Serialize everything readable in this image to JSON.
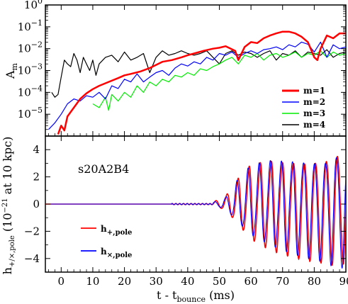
{
  "chart_data": [
    {
      "type": "line",
      "ylabel": "A",
      "ylabel_sub": "m",
      "yscale": "log",
      "ylim": [
        1e-06,
        1
      ],
      "xlim": [
        -5,
        90
      ],
      "y_ticks": [
        {
          "value": 1,
          "base": "10",
          "exp": "0"
        },
        {
          "value": 0.1,
          "base": "10",
          "exp": "−1"
        },
        {
          "value": 0.01,
          "base": "10",
          "exp": "−2"
        },
        {
          "value": 0.001,
          "base": "10",
          "exp": "−3"
        },
        {
          "value": 0.0001,
          "base": "10",
          "exp": "−4"
        },
        {
          "value": 1e-05,
          "base": "10",
          "exp": "−5"
        }
      ],
      "legend_position": "lower-right",
      "series": [
        {
          "name": "m=1",
          "color": "#ff0000",
          "x": [
            -1,
            0,
            1,
            2,
            4,
            6,
            8,
            10,
            12,
            15,
            18,
            20,
            22,
            25,
            28,
            30,
            32,
            35,
            38,
            40,
            42,
            45,
            48,
            50,
            52,
            55,
            56,
            58,
            60,
            62,
            64,
            66,
            68,
            70,
            72,
            74,
            76,
            78,
            80,
            81,
            82,
            84,
            86,
            88,
            90
          ],
          "y": [
            1.2e-06,
            3e-06,
            1.8e-06,
            8e-06,
            2e-05,
            5e-05,
            9e-05,
            0.00014,
            0.0002,
            0.0003,
            0.00045,
            0.0006,
            0.0007,
            0.0009,
            0.0013,
            0.0018,
            0.0025,
            0.003,
            0.004,
            0.005,
            0.006,
            0.008,
            0.01,
            0.011,
            0.013,
            0.008,
            0.003,
            0.012,
            0.02,
            0.018,
            0.03,
            0.04,
            0.05,
            0.06,
            0.06,
            0.05,
            0.035,
            0.02,
            0.004,
            0.003,
            0.01,
            0.04,
            0.03,
            0.05,
            0.05
          ]
        },
        {
          "name": "m=2",
          "color": "#0000ff",
          "x": [
            -4,
            -2,
            0,
            2,
            4,
            6,
            8,
            10,
            12,
            14,
            16,
            18,
            20,
            22,
            24,
            26,
            28,
            30,
            32,
            34,
            36,
            38,
            40,
            42,
            44,
            46,
            48,
            50,
            52,
            54,
            56,
            58,
            60,
            62,
            64,
            66,
            68,
            70,
            72,
            74,
            76,
            78,
            80,
            82,
            84,
            86,
            88,
            90
          ],
          "y": [
            2e-06,
            4e-06,
            1e-05,
            3e-05,
            5e-05,
            4e-05,
            7e-05,
            6e-05,
            0.0001,
            5e-05,
            0.0002,
            0.00015,
            0.0004,
            0.0003,
            0.0007,
            0.0003,
            0.0005,
            0.0008,
            0.001,
            0.0006,
            0.0013,
            0.002,
            0.0016,
            0.0025,
            0.002,
            0.004,
            0.003,
            0.006,
            0.005,
            0.007,
            0.004,
            0.006,
            0.008,
            0.006,
            0.009,
            0.01,
            0.012,
            0.009,
            0.015,
            0.012,
            0.02,
            0.016,
            0.007,
            0.02,
            0.004,
            0.015,
            0.01,
            0.012
          ]
        },
        {
          "name": "m=3",
          "color": "#00ee00",
          "x": [
            10,
            12,
            14,
            15,
            16,
            18,
            20,
            22,
            24,
            26,
            28,
            30,
            32,
            34,
            36,
            38,
            40,
            42,
            44,
            46,
            48,
            50,
            52,
            54,
            56,
            58,
            60,
            62,
            64,
            66,
            68,
            70,
            72,
            74,
            76,
            78,
            80,
            82,
            84,
            86,
            88,
            90
          ],
          "y": [
            3e-05,
            2e-05,
            6e-05,
            1.5e-05,
            8e-05,
            4e-05,
            0.0001,
            6e-05,
            0.0002,
            0.0001,
            0.0003,
            0.0002,
            0.0004,
            0.0003,
            0.0006,
            0.0005,
            0.0008,
            0.0006,
            0.0012,
            0.001,
            0.0015,
            0.002,
            0.003,
            0.004,
            0.002,
            0.005,
            0.004,
            0.006,
            0.003,
            0.005,
            0.006,
            0.004,
            0.005,
            0.007,
            0.004,
            0.006,
            0.005,
            0.008,
            0.004,
            0.007,
            0.005,
            0.006
          ]
        },
        {
          "name": "m=4",
          "color": "#000000",
          "x": [
            -3,
            -2,
            -1,
            0,
            1,
            2,
            3,
            4,
            5,
            6,
            7,
            8,
            9,
            10,
            11,
            12,
            14,
            16,
            18,
            20,
            22,
            24,
            26,
            28,
            30,
            32,
            34,
            36,
            38,
            40,
            42,
            44,
            46,
            48,
            50,
            52,
            54,
            56,
            58,
            60,
            62,
            64,
            66,
            68,
            70,
            72,
            74,
            76,
            78,
            80,
            82,
            84,
            86,
            88,
            90
          ],
          "y": [
            0.0001,
            6e-05,
            8e-05,
            0.0005,
            0.003,
            0.002,
            0.0015,
            0.006,
            0.003,
            0.0008,
            0.004,
            0.002,
            0.001,
            0.003,
            0.0006,
            0.002,
            0.004,
            0.005,
            0.0025,
            0.007,
            0.003,
            0.004,
            0.006,
            0.0008,
            0.004,
            0.008,
            0.005,
            0.006,
            0.008,
            0.006,
            0.005,
            0.006,
            0.008,
            0.004,
            0.002,
            0.006,
            0.008,
            0.005,
            0.007,
            0.006,
            0.004,
            0.006,
            0.008,
            0.003,
            0.006,
            0.005,
            0.008,
            0.004,
            0.007,
            0.006,
            0.005,
            0.009,
            0.004,
            0.006,
            0.007
          ]
        }
      ]
    },
    {
      "type": "line",
      "xlabel": "t - t",
      "xlabel_sub": "bounce",
      "xlabel_unit": " (ms)",
      "ylabel": "h",
      "ylabel_sub": "+/×,pole",
      "ylabel_mid": " (10",
      "ylabel_exp": "−21",
      "ylabel_tail": " at 10 kpc)",
      "xlim": [
        -5,
        90
      ],
      "ylim": [
        -5,
        5
      ],
      "x_ticks": [
        0,
        10,
        20,
        30,
        40,
        50,
        60,
        70,
        80,
        90
      ],
      "y_ticks": [
        4,
        2,
        0,
        -2,
        -4
      ],
      "annotation": "s20A2B4",
      "legend_position": "lower-left",
      "series": [
        {
          "name": "h",
          "name_sub": "+,pole",
          "color": "#ff0000",
          "quiet_end": 35,
          "growth_start": 48,
          "burst_start": 55,
          "periods": 3.5,
          "base_amplitude": 0.04,
          "envelope": {
            "x": [
              48,
              52,
              56,
              60,
              66,
              72,
              78,
              84,
              88,
              90
            ],
            "amp": [
              0.15,
              0.6,
              2.0,
              3.2,
              3.8,
              4.0,
              4.2,
              4.4,
              4.8,
              4.5
            ]
          }
        },
        {
          "name": "h",
          "name_sub": "×,pole",
          "color": "#0000ff",
          "quiet_end": 35,
          "growth_start": 48,
          "burst_start": 55,
          "periods": 3.5,
          "base_amplitude": 0.04,
          "envelope": {
            "x": [
              48,
              52,
              56,
              60,
              66,
              72,
              78,
              84,
              88,
              90
            ],
            "amp": [
              0.12,
              0.5,
              1.9,
              3.0,
              3.6,
              3.9,
              4.1,
              4.3,
              5.0,
              4.4
            ]
          }
        }
      ]
    }
  ]
}
